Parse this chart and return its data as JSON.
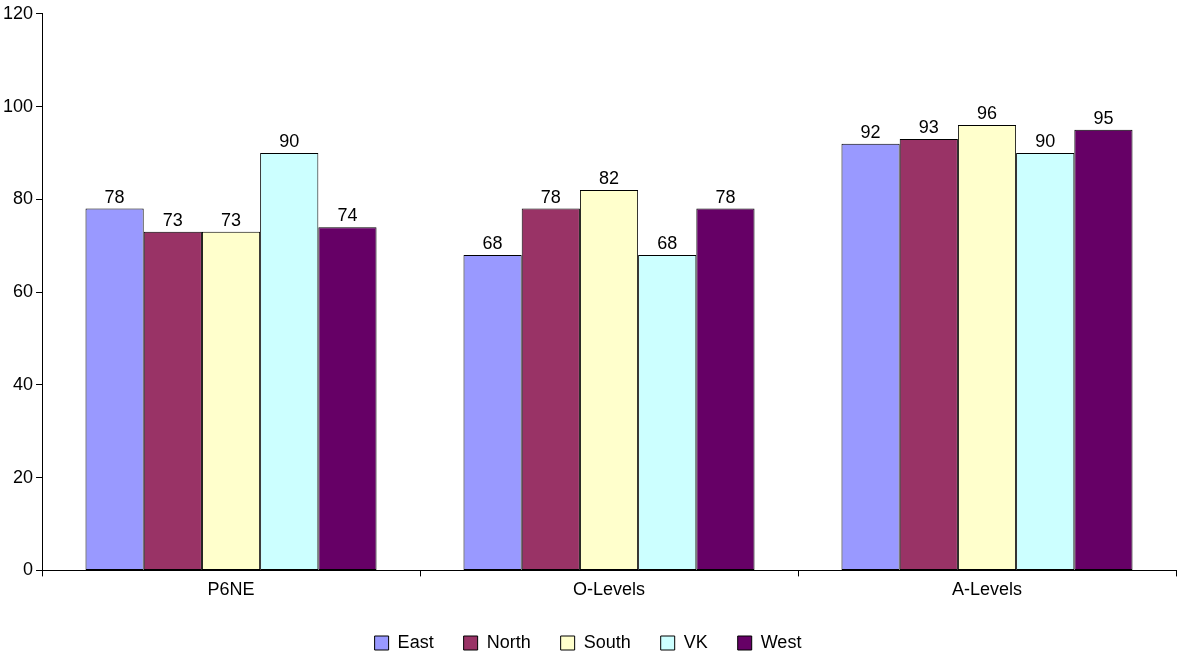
{
  "chart_data": {
    "type": "bar",
    "categories": [
      "P6NE",
      "O-Levels",
      "A-Levels"
    ],
    "series": [
      {
        "name": "East",
        "color": "#9999ff",
        "values": [
          78,
          68,
          92
        ]
      },
      {
        "name": "North",
        "color": "#993366",
        "values": [
          73,
          78,
          93
        ]
      },
      {
        "name": "South",
        "color": "#ffffcc",
        "values": [
          73,
          82,
          96
        ]
      },
      {
        "name": "VK",
        "color": "#ccffff",
        "values": [
          90,
          68,
          90
        ]
      },
      {
        "name": "West",
        "color": "#660066",
        "values": [
          74,
          78,
          95
        ]
      }
    ],
    "ylim": [
      0,
      120
    ],
    "yticks": [
      0,
      20,
      40,
      60,
      80,
      100,
      120
    ],
    "grid": false,
    "legend": "bottom",
    "data_labels": true
  }
}
